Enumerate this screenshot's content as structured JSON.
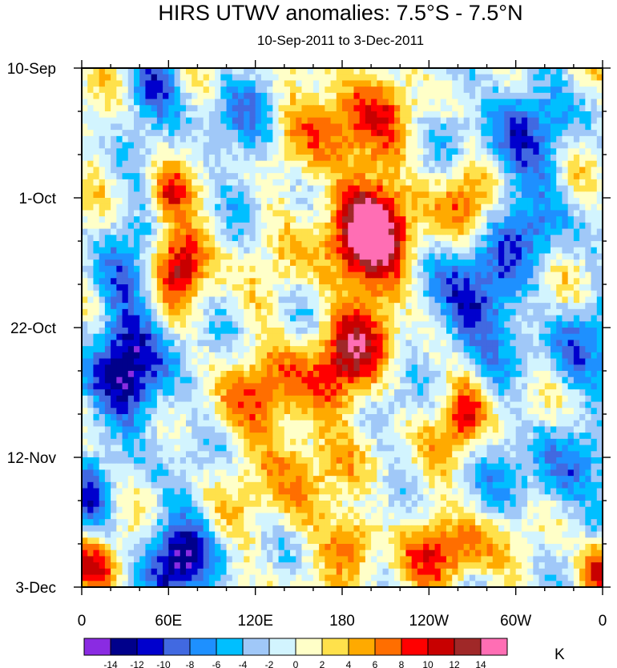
{
  "chart_data": {
    "type": "heatmap",
    "title": "HIRS UTWV anomalies: 7.5°S - 7.5°N",
    "subtitle": "10-Sep-2011 to 3-Dec-2011",
    "xlabel": "",
    "ylabel": "",
    "x_ticks": [
      "0",
      "60E",
      "120E",
      "180",
      "120W",
      "60W",
      "0"
    ],
    "y_ticks": [
      "10-Sep",
      "1-Oct",
      "22-Oct",
      "12-Nov",
      "3-Dec"
    ],
    "x_range_deg_east": [
      0,
      360
    ],
    "time_range_days": [
      0,
      84
    ],
    "colorbar": {
      "unit": "K",
      "levels": [
        "-14",
        "-12",
        "-10",
        "-8",
        "-6",
        "-4",
        "-2",
        "0",
        "2",
        "4",
        "6",
        "8",
        "10",
        "12",
        "14"
      ],
      "colors": [
        "#8A2BE2",
        "#00008B",
        "#0000CD",
        "#4169E1",
        "#1E90FF",
        "#00BFFF",
        "#A0C8F8",
        "#D2F4FE",
        "#FFFFC8",
        "#FFE14B",
        "#FFAA00",
        "#FF6E00",
        "#FF0000",
        "#C80000",
        "#A02828",
        "#FF6EB4"
      ]
    },
    "features": [
      {
        "lon": 200,
        "day": 30,
        "value": 11,
        "lon_sigma": 22,
        "day_sigma": 6
      },
      {
        "lon": 185,
        "day": 8,
        "value": 8,
        "lon_sigma": 25,
        "day_sigma": 6
      },
      {
        "lon": 195,
        "day": 23,
        "value": 8,
        "lon_sigma": 20,
        "day_sigma": 5
      },
      {
        "lon": 70,
        "day": 31,
        "value": 12,
        "lon_sigma": 12,
        "day_sigma": 4
      },
      {
        "lon": 60,
        "day": 21,
        "value": 7,
        "lon_sigma": 8,
        "day_sigma": 3
      },
      {
        "lon": 190,
        "day": 44,
        "value": 8,
        "lon_sigma": 18,
        "day_sigma": 4
      },
      {
        "lon": 265,
        "day": 56,
        "value": 9,
        "lon_sigma": 10,
        "day_sigma": 4
      },
      {
        "lon": 175,
        "day": 50,
        "value": 7,
        "lon_sigma": 15,
        "day_sigma": 4
      },
      {
        "lon": 190,
        "day": 76,
        "value": 8,
        "lon_sigma": 12,
        "day_sigma": 3
      },
      {
        "lon": 255,
        "day": 78,
        "value": 8,
        "lon_sigma": 20,
        "day_sigma": 4
      },
      {
        "lon": 10,
        "day": 81,
        "value": 8,
        "lon_sigma": 10,
        "day_sigma": 3
      },
      {
        "lon": 355,
        "day": 81,
        "value": 8,
        "lon_sigma": 10,
        "day_sigma": 3
      },
      {
        "lon": 265,
        "day": 20,
        "value": 7,
        "lon_sigma": 15,
        "day_sigma": 5
      },
      {
        "lon": 130,
        "day": 53,
        "value": 5,
        "lon_sigma": 25,
        "day_sigma": 5
      },
      {
        "lon": 145,
        "day": 65,
        "value": 5,
        "lon_sigma": 18,
        "day_sigma": 8
      },
      {
        "lon": 270,
        "day": 38,
        "value": -13,
        "lon_sigma": 20,
        "day_sigma": 6
      },
      {
        "lon": 65,
        "day": 79,
        "value": -13,
        "lon_sigma": 18,
        "day_sigma": 5
      },
      {
        "lon": 50,
        "day": 2,
        "value": -9,
        "lon_sigma": 15,
        "day_sigma": 4
      },
      {
        "lon": 40,
        "day": 51,
        "value": -9,
        "lon_sigma": 18,
        "day_sigma": 6
      },
      {
        "lon": 300,
        "day": 10,
        "value": -7,
        "lon_sigma": 30,
        "day_sigma": 8
      },
      {
        "lon": 30,
        "day": 41,
        "value": -7,
        "lon_sigma": 15,
        "day_sigma": 12
      },
      {
        "lon": 340,
        "day": 45,
        "value": -7,
        "lon_sigma": 15,
        "day_sigma": 6
      },
      {
        "lon": 320,
        "day": 65,
        "value": -6,
        "lon_sigma": 25,
        "day_sigma": 6
      },
      {
        "lon": 310,
        "day": 25,
        "value": -6,
        "lon_sigma": 20,
        "day_sigma": 5
      },
      {
        "lon": 110,
        "day": 10,
        "value": -5,
        "lon_sigma": 20,
        "day_sigma": 6
      },
      {
        "lon": 5,
        "day": 70,
        "value": -6,
        "lon_sigma": 8,
        "day_sigma": 4
      }
    ]
  }
}
